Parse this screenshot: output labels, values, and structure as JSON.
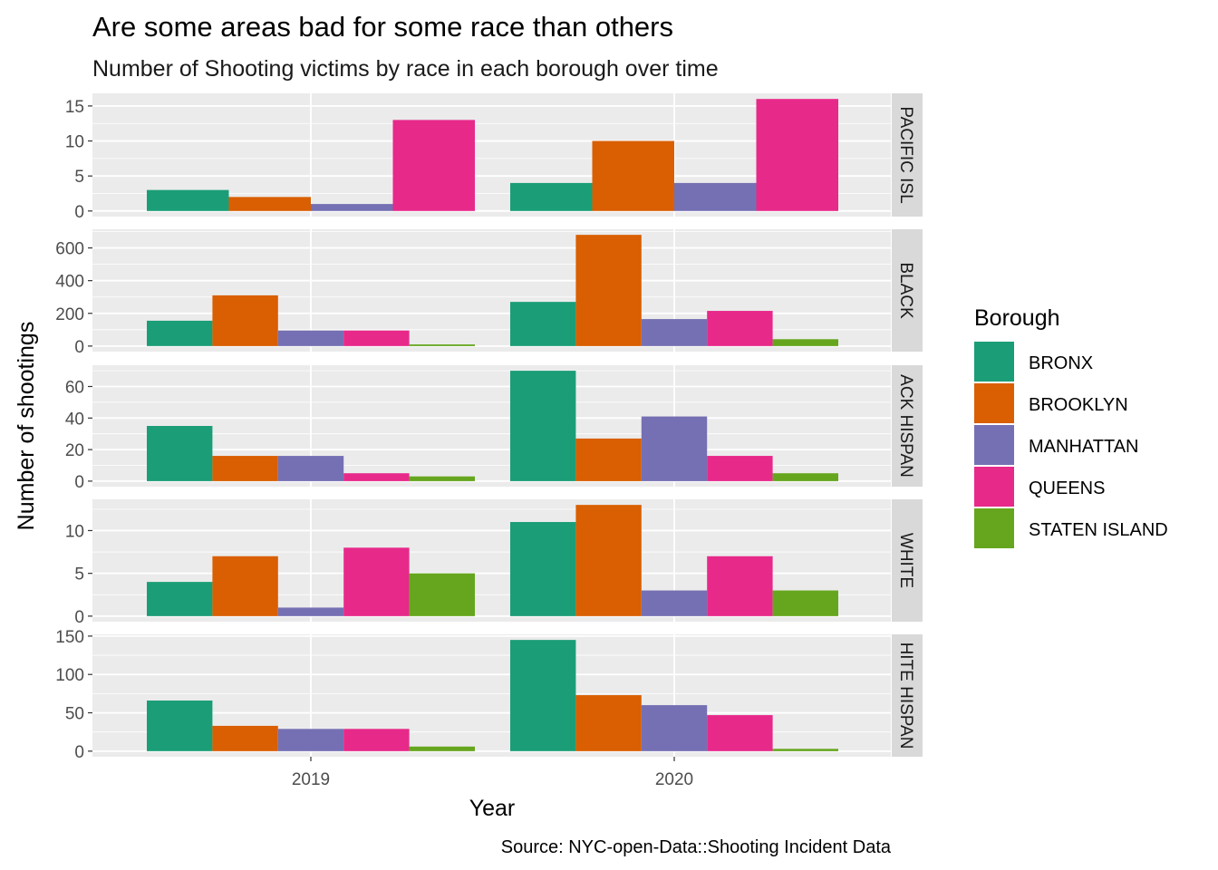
{
  "chart_data": {
    "type": "bar",
    "title": "Are some areas bad for some race than others",
    "subtitle": "Number of Shooting victims by race in each borough over time",
    "xlabel": "Year",
    "ylabel": "Number of shootings",
    "caption": "Source: NYC-open-Data::Shooting Incident Data",
    "categories": [
      "2019",
      "2020"
    ],
    "legend": {
      "title": "Borough",
      "position": "right",
      "items": [
        {
          "name": "BRONX",
          "color": "#1b9e77"
        },
        {
          "name": "BROOKLYN",
          "color": "#d95f02"
        },
        {
          "name": "MANHATTAN",
          "color": "#7570b3"
        },
        {
          "name": "QUEENS",
          "color": "#e7298a"
        },
        {
          "name": "STATEN ISLAND",
          "color": "#66a61e"
        }
      ]
    },
    "grid": true,
    "facets": [
      {
        "label": "PACIFIC ISL",
        "ylim": [
          -0.8,
          16.8
        ],
        "yticks": [
          0,
          5,
          10,
          15
        ],
        "series": [
          {
            "name": "BRONX",
            "values": [
              3,
              4
            ]
          },
          {
            "name": "BROOKLYN",
            "values": [
              2,
              10
            ]
          },
          {
            "name": "MANHATTAN",
            "values": [
              1,
              4
            ]
          },
          {
            "name": "QUEENS",
            "values": [
              13,
              16
            ]
          }
        ]
      },
      {
        "label": "BLACK",
        "ylim": [
          -34,
          714
        ],
        "yticks": [
          0,
          200,
          400,
          600
        ],
        "series": [
          {
            "name": "BRONX",
            "values": [
              155,
              270
            ]
          },
          {
            "name": "BROOKLYN",
            "values": [
              310,
              680
            ]
          },
          {
            "name": "MANHATTAN",
            "values": [
              95,
              165
            ]
          },
          {
            "name": "QUEENS",
            "values": [
              95,
              215
            ]
          },
          {
            "name": "STATEN ISLAND",
            "values": [
              10,
              42
            ]
          }
        ]
      },
      {
        "label": "ACK HISPAN",
        "ylim": [
          -3.5,
          73.5
        ],
        "yticks": [
          0,
          20,
          40,
          60
        ],
        "series": [
          {
            "name": "BRONX",
            "values": [
              35,
              70
            ]
          },
          {
            "name": "BROOKLYN",
            "values": [
              16,
              27
            ]
          },
          {
            "name": "MANHATTAN",
            "values": [
              16,
              41
            ]
          },
          {
            "name": "QUEENS",
            "values": [
              5,
              16
            ]
          },
          {
            "name": "STATEN ISLAND",
            "values": [
              3,
              5
            ]
          }
        ]
      },
      {
        "label": "WHITE",
        "ylim": [
          -0.65,
          13.65
        ],
        "yticks": [
          0,
          5,
          10
        ],
        "series": [
          {
            "name": "BRONX",
            "values": [
              4,
              11
            ]
          },
          {
            "name": "BROOKLYN",
            "values": [
              7,
              13
            ]
          },
          {
            "name": "MANHATTAN",
            "values": [
              1,
              3
            ]
          },
          {
            "name": "QUEENS",
            "values": [
              8,
              7
            ]
          },
          {
            "name": "STATEN ISLAND",
            "values": [
              5,
              3
            ]
          }
        ]
      },
      {
        "label": "HITE HISPAN",
        "ylim": [
          -7.25,
          152.25
        ],
        "yticks": [
          0,
          50,
          100,
          150
        ],
        "series": [
          {
            "name": "BRONX",
            "values": [
              66,
              145
            ]
          },
          {
            "name": "BROOKLYN",
            "values": [
              33,
              73
            ]
          },
          {
            "name": "MANHATTAN",
            "values": [
              29,
              60
            ]
          },
          {
            "name": "QUEENS",
            "values": [
              29,
              47
            ]
          },
          {
            "name": "STATEN ISLAND",
            "values": [
              6,
              3
            ]
          }
        ]
      }
    ]
  }
}
